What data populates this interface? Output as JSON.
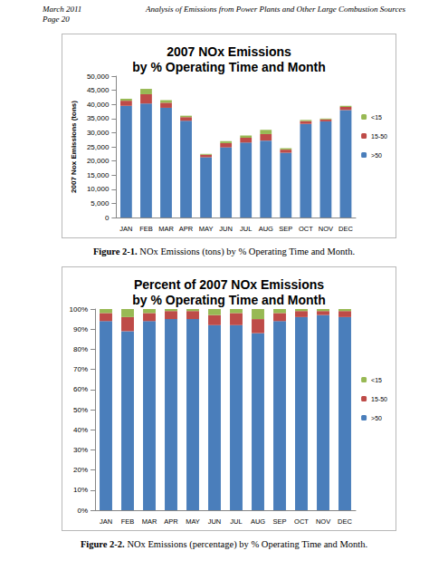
{
  "header": {
    "date": "March 2011",
    "page": "Page 20",
    "title": "Analysis of Emissions from Power Plants and Other Large Combustion Sources"
  },
  "chart_data": [
    {
      "type": "bar",
      "stacked": true,
      "grid": false,
      "legend": "right",
      "title": "2007 NOx Emissions\nby % Operating Time and Month",
      "y_label": "2007 Nox Emissions (tons)",
      "caption": {
        "label": "Figure 2-1.",
        "text": "NOx Emissions (tons) by % Operating Time and Month."
      },
      "categories": [
        "JAN",
        "FEB",
        "MAR",
        "APR",
        "MAY",
        "JUN",
        "JUL",
        "AUG",
        "SEP",
        "OCT",
        "NOV",
        "DEC"
      ],
      "ylim": [
        0,
        50000
      ],
      "yticks": [
        0,
        {
          "value": 5000,
          "label": "5,000"
        },
        {
          "value": 10000,
          "label": "10,000"
        },
        {
          "value": 15000,
          "label": "15,000"
        },
        {
          "value": 20000,
          "label": "20,000"
        },
        {
          "value": 25000,
          "label": "25,000"
        },
        {
          "value": 30000,
          "label": "30,000"
        },
        {
          "value": 35000,
          "label": "35,000"
        },
        {
          "value": 40000,
          "label": "40,000"
        },
        {
          "value": 45000,
          "label": "45,000"
        },
        {
          "value": 50000,
          "label": "50,000"
        }
      ],
      "series": [
        {
          "name": ">50",
          "color": "#4a7ebb",
          "values": [
            39500,
            40300,
            38800,
            34200,
            21300,
            24800,
            26500,
            27200,
            22900,
            33100,
            34000,
            38000
          ]
        },
        {
          "name": "15-50",
          "color": "#be4b48",
          "values": [
            1800,
            3300,
            1800,
            1300,
            900,
            1500,
            1700,
            2300,
            1100,
            1000,
            700,
            1100
          ]
        },
        {
          "name": "<15",
          "color": "#98b954",
          "values": [
            700,
            1900,
            900,
            500,
            300,
            700,
            800,
            1500,
            500,
            400,
            300,
            400
          ]
        }
      ]
    },
    {
      "type": "bar",
      "stacked": true,
      "grid": false,
      "legend": "right",
      "title": "Percent of 2007 NOx Emissions\nby % Operating Time and Month",
      "caption": {
        "label": "Figure 2-2.",
        "text": "NOx Emissions (percentage) by % Operating Time and Month."
      },
      "categories": [
        "JAN",
        "FEB",
        "MAR",
        "APR",
        "MAY",
        "JUN",
        "JUL",
        "AUG",
        "SEP",
        "OCT",
        "NOV",
        "DEC"
      ],
      "ylim": [
        0,
        100
      ],
      "yticks": [
        {
          "value": 0,
          "label": "0%"
        },
        {
          "value": 10,
          "label": "10%"
        },
        {
          "value": 20,
          "label": "20%"
        },
        {
          "value": 30,
          "label": "30%"
        },
        {
          "value": 40,
          "label": "40%"
        },
        {
          "value": 50,
          "label": "50%"
        },
        {
          "value": 60,
          "label": "60%"
        },
        {
          "value": 70,
          "label": "70%"
        },
        {
          "value": 80,
          "label": "80%"
        },
        {
          "value": 90,
          "label": "90%"
        },
        {
          "value": 100,
          "label": "100%"
        }
      ],
      "series": [
        {
          "name": ">50",
          "color": "#4a7ebb",
          "values": [
            94,
            89,
            94,
            95,
            95,
            92,
            92,
            88,
            94,
            96,
            97,
            96
          ]
        },
        {
          "name": "15-50",
          "color": "#be4b48",
          "values": [
            4,
            7,
            4,
            4,
            4,
            5,
            6,
            7,
            4,
            3,
            2,
            3
          ]
        },
        {
          "name": "<15",
          "color": "#98b954",
          "values": [
            2,
            4,
            2,
            1,
            1,
            3,
            2,
            5,
            2,
            1,
            1,
            1
          ]
        }
      ]
    }
  ]
}
